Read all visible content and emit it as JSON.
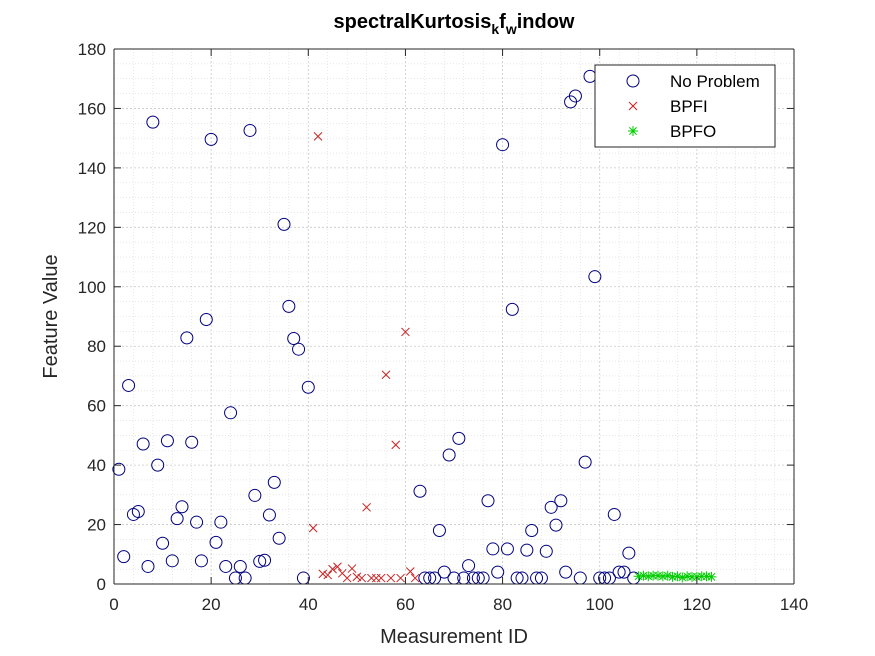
{
  "chart_data": {
    "type": "scatter",
    "title": {
      "parts": [
        {
          "text": "spectralKurtosis",
          "sub": false
        },
        {
          "text": "k",
          "sub": true
        },
        {
          "text": "f",
          "sub": false
        },
        {
          "text": "w",
          "sub": true
        },
        {
          "text": "indow",
          "sub": false
        }
      ]
    },
    "xlabel": "Measurement ID",
    "ylabel": "Feature Value",
    "xlim": [
      0,
      140
    ],
    "ylim": [
      0,
      180
    ],
    "xticks": [
      0,
      20,
      40,
      60,
      80,
      100,
      120,
      140
    ],
    "yticks": [
      0,
      20,
      40,
      60,
      80,
      100,
      120,
      140,
      160,
      180
    ],
    "grid": true,
    "minor_grid": true,
    "legend_position": "top-right",
    "colors": {
      "axis": "#262626",
      "grid": "#d9d9d9",
      "background": "#ffffff"
    },
    "series": [
      {
        "name": "No Problem",
        "marker": "circle",
        "color": "#00007f",
        "points": [
          [
            1,
            38.6
          ],
          [
            2,
            9.2
          ],
          [
            3,
            66.8
          ],
          [
            4,
            23.4
          ],
          [
            5,
            24.4
          ],
          [
            6,
            47.1
          ],
          [
            7,
            5.9
          ],
          [
            8,
            155.4
          ],
          [
            9,
            40
          ],
          [
            10,
            13.7
          ],
          [
            11,
            48.2
          ],
          [
            12,
            7.8
          ],
          [
            13,
            22
          ],
          [
            14,
            26
          ],
          [
            15,
            82.8
          ],
          [
            16,
            47.7
          ],
          [
            17,
            20.8
          ],
          [
            18,
            7.8
          ],
          [
            19,
            89
          ],
          [
            20,
            149.6
          ],
          [
            21,
            14
          ],
          [
            22,
            20.8
          ],
          [
            23,
            5.9
          ],
          [
            24,
            57.6
          ],
          [
            25,
            2
          ],
          [
            26,
            5.9
          ],
          [
            27,
            2
          ],
          [
            28,
            152.6
          ],
          [
            29,
            29.8
          ],
          [
            30,
            7.6
          ],
          [
            31,
            8
          ],
          [
            32,
            23.2
          ],
          [
            33,
            34.2
          ],
          [
            34,
            15.4
          ],
          [
            35,
            121
          ],
          [
            36,
            93.4
          ],
          [
            37,
            82.6
          ],
          [
            38,
            79
          ],
          [
            39,
            2
          ],
          [
            40,
            66.2
          ],
          [
            63,
            31.2
          ],
          [
            64,
            2
          ],
          [
            65,
            2
          ],
          [
            66,
            2
          ],
          [
            67,
            18
          ],
          [
            68,
            4
          ],
          [
            69,
            43.4
          ],
          [
            70,
            2
          ],
          [
            71,
            49
          ],
          [
            72,
            2
          ],
          [
            73,
            6.2
          ],
          [
            74,
            2
          ],
          [
            75,
            2
          ],
          [
            76,
            2
          ],
          [
            77,
            28
          ],
          [
            78,
            11.8
          ],
          [
            79,
            4
          ],
          [
            80,
            147.8
          ],
          [
            81,
            11.8
          ],
          [
            82,
            92.4
          ],
          [
            83,
            2
          ],
          [
            84,
            2
          ],
          [
            85,
            11.4
          ],
          [
            86,
            18
          ],
          [
            87,
            2
          ],
          [
            88,
            2
          ],
          [
            89,
            11
          ],
          [
            90,
            25.8
          ],
          [
            91,
            19.8
          ],
          [
            92,
            28
          ],
          [
            93,
            4
          ],
          [
            94,
            162.2
          ],
          [
            95,
            164.2
          ],
          [
            96,
            2
          ],
          [
            97,
            41
          ],
          [
            98,
            170.8
          ],
          [
            99,
            103.4
          ],
          [
            100,
            2
          ],
          [
            101,
            2
          ],
          [
            102,
            2
          ],
          [
            103,
            23.4
          ],
          [
            104,
            4
          ],
          [
            105,
            4
          ],
          [
            106,
            10.4
          ],
          [
            107,
            2
          ]
        ]
      },
      {
        "name": "BPFI",
        "marker": "x",
        "color": "#cc2222",
        "points": [
          [
            41,
            18.8
          ],
          [
            42,
            150.6
          ],
          [
            43,
            3.4
          ],
          [
            44,
            3
          ],
          [
            45,
            5
          ],
          [
            46,
            5.8
          ],
          [
            47,
            3.6
          ],
          [
            48,
            2
          ],
          [
            49,
            5.2
          ],
          [
            50,
            2.4
          ],
          [
            51,
            2
          ],
          [
            52,
            25.8
          ],
          [
            53,
            2
          ],
          [
            54,
            2
          ],
          [
            55,
            2
          ],
          [
            56,
            70.4
          ],
          [
            57,
            2
          ],
          [
            58,
            46.8
          ],
          [
            59,
            2
          ],
          [
            60,
            84.8
          ],
          [
            61,
            4.2
          ],
          [
            62,
            2
          ]
        ]
      },
      {
        "name": "BPFO",
        "marker": "star",
        "color": "#00cc00",
        "points": [
          [
            108,
            2.6
          ],
          [
            109,
            2.8
          ],
          [
            110,
            2.6
          ],
          [
            111,
            2.8
          ],
          [
            112,
            2.8
          ],
          [
            113,
            2.6
          ],
          [
            114,
            2.8
          ],
          [
            115,
            2.4
          ],
          [
            116,
            2.6
          ],
          [
            117,
            2.2
          ],
          [
            118,
            2.6
          ],
          [
            119,
            2.4
          ],
          [
            120,
            2.4
          ],
          [
            121,
            2.6
          ],
          [
            122,
            2.6
          ],
          [
            123,
            2.4
          ]
        ]
      }
    ]
  }
}
